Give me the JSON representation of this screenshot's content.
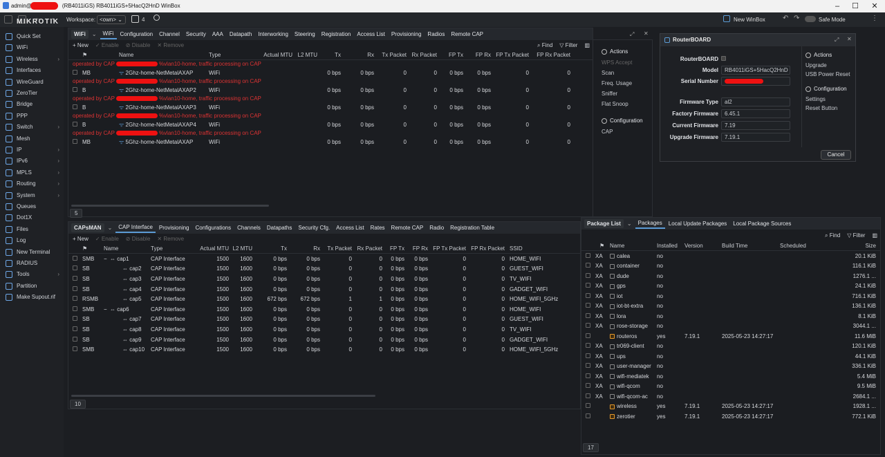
{
  "window": {
    "title": "admin@",
    "title_rest": "(RB4011iGS) RB4011iGS+5HacQ2HnD WinBox"
  },
  "topbar": {
    "workspace_label": "Workspace:",
    "workspace_value": "<own>",
    "windows_count": "4",
    "new_winbox": "New WinBox",
    "safe_mode": "Safe Mode"
  },
  "sidebar": {
    "logo": "MIKROTIK",
    "items": [
      {
        "label": "Quick Set",
        "arrow": ""
      },
      {
        "label": "WiFi",
        "arrow": ""
      },
      {
        "label": "Wireless",
        "arrow": "›"
      },
      {
        "label": "Interfaces",
        "arrow": ""
      },
      {
        "label": "WireGuard",
        "arrow": ""
      },
      {
        "label": "ZeroTier",
        "arrow": ""
      },
      {
        "label": "Bridge",
        "arrow": ""
      },
      {
        "label": "PPP",
        "arrow": ""
      },
      {
        "label": "Switch",
        "arrow": "›"
      },
      {
        "label": "Mesh",
        "arrow": ""
      },
      {
        "label": "IP",
        "arrow": "›"
      },
      {
        "label": "IPv6",
        "arrow": "›"
      },
      {
        "label": "MPLS",
        "arrow": "›"
      },
      {
        "label": "Routing",
        "arrow": "›"
      },
      {
        "label": "System",
        "arrow": "›"
      },
      {
        "label": "Queues",
        "arrow": ""
      },
      {
        "label": "Dot1X",
        "arrow": ""
      },
      {
        "label": "Files",
        "arrow": ""
      },
      {
        "label": "Log",
        "arrow": ""
      },
      {
        "label": "New Terminal",
        "arrow": ""
      },
      {
        "label": "RADIUS",
        "arrow": ""
      },
      {
        "label": "Tools",
        "arrow": "›"
      },
      {
        "label": "Partition",
        "arrow": ""
      },
      {
        "label": "Make Supout.rif",
        "arrow": ""
      }
    ]
  },
  "wifi": {
    "tabs": [
      "WiFi",
      "WiFi",
      "Configuration",
      "Channel",
      "Security",
      "AAA",
      "Datapath",
      "Interworking",
      "Steering",
      "Registration",
      "Access List",
      "Provisioning",
      "Radios",
      "Remote CAP"
    ],
    "toolbar": {
      "new": "New",
      "enable": "Enable",
      "disable": "Disable",
      "remove": "Remove",
      "find": "Find",
      "filter": "Filter"
    },
    "columns": [
      "Name",
      "Type",
      "Actual MTU",
      "L2 MTU",
      "Tx",
      "Rx",
      "Tx Packet",
      "Rx Packet",
      "FP Tx",
      "FP Rx",
      "FP Tx Packet",
      "FP Rx Packet"
    ],
    "rows": [
      {
        "note_a": "operated by CAP",
        "note_b": "%vlan10-home, traffic processing on CAP",
        "flag": "MB",
        "name": "2Ghz-home-NetMetalAXAP",
        "type": "WiFi",
        "tx": "0 bps",
        "rx": "0 bps",
        "txp": "0",
        "rxp": "0",
        "fptx": "0 bps",
        "fprx": "0 bps",
        "fptxp": "0",
        "fprxp": "0"
      },
      {
        "note_a": "operated by CAP",
        "note_b": "%vlan10-home, traffic processing on CAP",
        "flag": "B",
        "name": "2Ghz-home-NetMetalAXAP2",
        "type": "WiFi",
        "tx": "0 bps",
        "rx": "0 bps",
        "txp": "0",
        "rxp": "0",
        "fptx": "0 bps",
        "fprx": "0 bps",
        "fptxp": "0",
        "fprxp": "0"
      },
      {
        "note_a": "operated by CAP",
        "note_b": "%vlan10-home, traffic processing on CAP",
        "flag": "B",
        "name": "2Ghz-home-NetMetalAXAP3",
        "type": "WiFi",
        "tx": "0 bps",
        "rx": "0 bps",
        "txp": "0",
        "rxp": "0",
        "fptx": "0 bps",
        "fprx": "0 bps",
        "fptxp": "0",
        "fprxp": "0"
      },
      {
        "note_a": "operated by CAP",
        "note_b": "%vlan10-home, traffic processing on CAP",
        "flag": "B",
        "name": "2Ghz-home-NetMetalAXAP4",
        "type": "WiFi",
        "tx": "0 bps",
        "rx": "0 bps",
        "txp": "0",
        "rxp": "0",
        "fptx": "0 bps",
        "fprx": "0 bps",
        "fptxp": "0",
        "fprxp": "0"
      },
      {
        "note_a": "operated by CAP",
        "note_b": "%vlan10-home, traffic processing on CAP",
        "flag": "MB",
        "name": "5Ghz-home-NetMetalAXAP",
        "type": "WiFi",
        "tx": "0 bps",
        "rx": "0 bps",
        "txp": "0",
        "rxp": "0",
        "fptx": "0 bps",
        "fprx": "0 bps",
        "fptxp": "0",
        "fprxp": "0"
      }
    ],
    "count": "5",
    "side": {
      "actions": "Actions",
      "items": [
        "WPS Accept",
        "Scan",
        "Freq. Usage",
        "Sniffer",
        "Flat Snoop"
      ],
      "config": "Configuration",
      "config_items": [
        "CAP"
      ]
    }
  },
  "capsman": {
    "tabs": [
      "CAPsMAN",
      "CAP Interface",
      "Provisioning",
      "Configurations",
      "Channels",
      "Datapaths",
      "Security Cfg.",
      "Access List",
      "Rates",
      "Remote CAP",
      "Radio",
      "Registration Table"
    ],
    "toolbar": {
      "new": "New",
      "enable": "Enable",
      "disable": "Disable",
      "remove": "Remove"
    },
    "columns": [
      "Name",
      "Type",
      "Actual MTU",
      "L2 MTU",
      "Tx",
      "Rx",
      "Tx Packet",
      "Rx Packet",
      "FP Tx",
      "FP Rx",
      "FP Tx Packet",
      "FP Rx Packet",
      "SSID"
    ],
    "rows": [
      {
        "flag": "SMB",
        "tree": "−",
        "name": "cap1",
        "type": "CAP Interface",
        "mtu": "1500",
        "l2": "1600",
        "tx": "0 bps",
        "rx": "0 bps",
        "txp": "0",
        "rxp": "0",
        "fptx": "0 bps",
        "fprx": "0 bps",
        "fptxp": "0",
        "fprxp": "0",
        "ssid": "HOME_WIFI"
      },
      {
        "flag": "SB",
        "tree": "",
        "name": "cap2",
        "type": "CAP Interface",
        "mtu": "1500",
        "l2": "1600",
        "tx": "0 bps",
        "rx": "0 bps",
        "txp": "0",
        "rxp": "0",
        "fptx": "0 bps",
        "fprx": "0 bps",
        "fptxp": "0",
        "fprxp": "0",
        "ssid": "GUEST_WIFI"
      },
      {
        "flag": "SB",
        "tree": "",
        "name": "cap3",
        "type": "CAP Interface",
        "mtu": "1500",
        "l2": "1600",
        "tx": "0 bps",
        "rx": "0 bps",
        "txp": "0",
        "rxp": "0",
        "fptx": "0 bps",
        "fprx": "0 bps",
        "fptxp": "0",
        "fprxp": "0",
        "ssid": "TV_WIFI"
      },
      {
        "flag": "SB",
        "tree": "",
        "name": "cap4",
        "type": "CAP Interface",
        "mtu": "1500",
        "l2": "1600",
        "tx": "0 bps",
        "rx": "0 bps",
        "txp": "0",
        "rxp": "0",
        "fptx": "0 bps",
        "fprx": "0 bps",
        "fptxp": "0",
        "fprxp": "0",
        "ssid": "GADGET_WIFI"
      },
      {
        "flag": "RSMB",
        "tree": "",
        "name": "cap5",
        "type": "CAP Interface",
        "mtu": "1500",
        "l2": "1600",
        "tx": "672 bps",
        "rx": "672 bps",
        "txp": "1",
        "rxp": "1",
        "fptx": "0 bps",
        "fprx": "0 bps",
        "fptxp": "0",
        "fprxp": "0",
        "ssid": "HOME_WIFI_5GHz"
      },
      {
        "flag": "SMB",
        "tree": "−",
        "name": "cap6",
        "type": "CAP Interface",
        "mtu": "1500",
        "l2": "1600",
        "tx": "0 bps",
        "rx": "0 bps",
        "txp": "0",
        "rxp": "0",
        "fptx": "0 bps",
        "fprx": "0 bps",
        "fptxp": "0",
        "fprxp": "0",
        "ssid": "HOME_WIFI"
      },
      {
        "flag": "SB",
        "tree": "",
        "name": "cap7",
        "type": "CAP Interface",
        "mtu": "1500",
        "l2": "1600",
        "tx": "0 bps",
        "rx": "0 bps",
        "txp": "0",
        "rxp": "0",
        "fptx": "0 bps",
        "fprx": "0 bps",
        "fptxp": "0",
        "fprxp": "0",
        "ssid": "GUEST_WIFI"
      },
      {
        "flag": "SB",
        "tree": "",
        "name": "cap8",
        "type": "CAP Interface",
        "mtu": "1500",
        "l2": "1600",
        "tx": "0 bps",
        "rx": "0 bps",
        "txp": "0",
        "rxp": "0",
        "fptx": "0 bps",
        "fprx": "0 bps",
        "fptxp": "0",
        "fprxp": "0",
        "ssid": "TV_WIFI"
      },
      {
        "flag": "SB",
        "tree": "",
        "name": "cap9",
        "type": "CAP Interface",
        "mtu": "1500",
        "l2": "1600",
        "tx": "0 bps",
        "rx": "0 bps",
        "txp": "0",
        "rxp": "0",
        "fptx": "0 bps",
        "fprx": "0 bps",
        "fptxp": "0",
        "fprxp": "0",
        "ssid": "GADGET_WIFI"
      },
      {
        "flag": "SMB",
        "tree": "",
        "name": "cap10",
        "type": "CAP Interface",
        "mtu": "1500",
        "l2": "1600",
        "tx": "0 bps",
        "rx": "0 bps",
        "txp": "0",
        "rxp": "0",
        "fptx": "0 bps",
        "fprx": "0 bps",
        "fptxp": "0",
        "fprxp": "0",
        "ssid": "HOME_WIFI_5GHz"
      }
    ],
    "count": "10"
  },
  "routerboard": {
    "title": "RouterBOARD",
    "fields": [
      {
        "label": "RouterBOARD",
        "value": ""
      },
      {
        "label": "Model",
        "value": "RB4011iGS+5HacQ2HnD"
      },
      {
        "label": "Serial Number",
        "value": ""
      },
      {
        "label": "Firmware Type",
        "value": "al2"
      },
      {
        "label": "Factory Firmware",
        "value": "6.45.1"
      },
      {
        "label": "Current Firmware",
        "value": "7.19"
      },
      {
        "label": "Upgrade Firmware",
        "value": "7.19.1"
      }
    ],
    "actions": "Actions",
    "action_items": [
      "Upgrade",
      "USB Power Reset"
    ],
    "config": "Configuration",
    "config_items": [
      "Settings",
      "Reset Button"
    ],
    "cancel": "Cancel"
  },
  "packages": {
    "tabs": [
      "Package List",
      "Packages",
      "Local Update Packages",
      "Local Package Sources"
    ],
    "toolbar": {
      "find": "Find",
      "filter": "Filter"
    },
    "columns": [
      "Name",
      "Installed",
      "Version",
      "Build Time",
      "Scheduled",
      "Size"
    ],
    "rows": [
      {
        "flag": "XA",
        "name": "calea",
        "installed": "no",
        "version": "",
        "build": "",
        "size": "20.1 KiB",
        "inst": false
      },
      {
        "flag": "XA",
        "name": "container",
        "installed": "no",
        "version": "",
        "build": "",
        "size": "116.1 KiB",
        "inst": false
      },
      {
        "flag": "XA",
        "name": "dude",
        "installed": "no",
        "version": "",
        "build": "",
        "size": "1276.1 ...",
        "inst": false
      },
      {
        "flag": "XA",
        "name": "gps",
        "installed": "no",
        "version": "",
        "build": "",
        "size": "24.1 KiB",
        "inst": false
      },
      {
        "flag": "XA",
        "name": "iot",
        "installed": "no",
        "version": "",
        "build": "",
        "size": "716.1 KiB",
        "inst": false
      },
      {
        "flag": "XA",
        "name": "iot-bt-extra",
        "installed": "no",
        "version": "",
        "build": "",
        "size": "136.1 KiB",
        "inst": false
      },
      {
        "flag": "XA",
        "name": "lora",
        "installed": "no",
        "version": "",
        "build": "",
        "size": "8.1 KiB",
        "inst": false
      },
      {
        "flag": "XA",
        "name": "rose-storage",
        "installed": "no",
        "version": "",
        "build": "",
        "size": "3044.1 ...",
        "inst": false
      },
      {
        "flag": "",
        "name": "routeros",
        "installed": "yes",
        "version": "7.19.1",
        "build": "2025-05-23 14:27:17",
        "size": "11.6 MiB",
        "inst": true
      },
      {
        "flag": "XA",
        "name": "tr069-client",
        "installed": "no",
        "version": "",
        "build": "",
        "size": "120.1 KiB",
        "inst": false
      },
      {
        "flag": "XA",
        "name": "ups",
        "installed": "no",
        "version": "",
        "build": "",
        "size": "44.1 KiB",
        "inst": false
      },
      {
        "flag": "XA",
        "name": "user-manager",
        "installed": "no",
        "version": "",
        "build": "",
        "size": "336.1 KiB",
        "inst": false
      },
      {
        "flag": "XA",
        "name": "wifi-mediatek",
        "installed": "no",
        "version": "",
        "build": "",
        "size": "5.4 MiB",
        "inst": false
      },
      {
        "flag": "XA",
        "name": "wifi-qcom",
        "installed": "no",
        "version": "",
        "build": "",
        "size": "9.5 MiB",
        "inst": false
      },
      {
        "flag": "XA",
        "name": "wifi-qcom-ac",
        "installed": "no",
        "version": "",
        "build": "",
        "size": "2684.1 ...",
        "inst": false
      },
      {
        "flag": "",
        "name": "wireless",
        "installed": "yes",
        "version": "7.19.1",
        "build": "2025-05-23 14:27:17",
        "size": "1928.1 ...",
        "inst": true
      },
      {
        "flag": "",
        "name": "zerotier",
        "installed": "yes",
        "version": "7.19.1",
        "build": "2025-05-23 14:27:17",
        "size": "772.1 KiB",
        "inst": true
      }
    ],
    "count": "17"
  }
}
